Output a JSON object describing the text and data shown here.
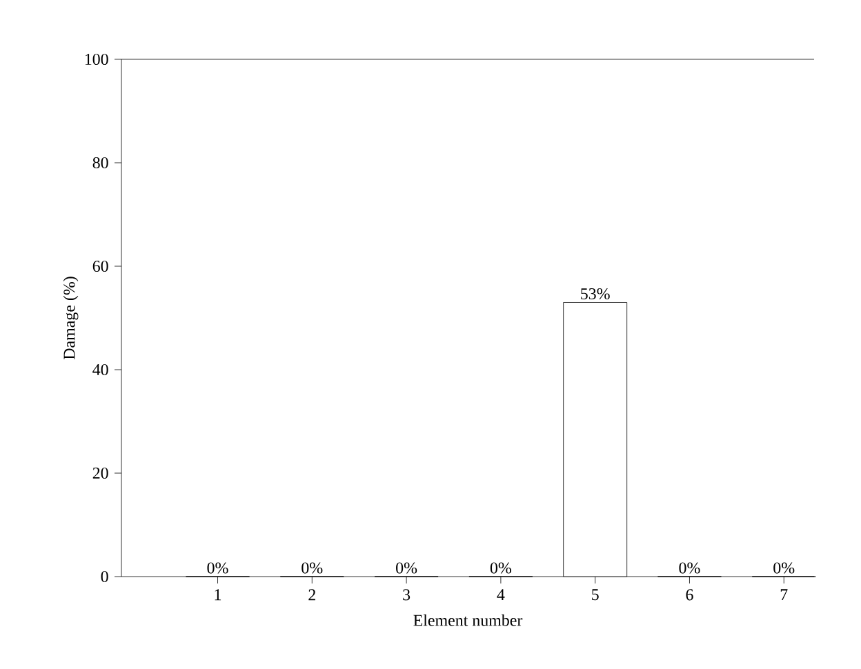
{
  "chart_data": {
    "type": "bar",
    "xlabel": "Element number",
    "ylabel": "Damage (%)",
    "categories": [
      "1",
      "2",
      "3",
      "4",
      "5",
      "6",
      "7"
    ],
    "values": [
      0,
      0,
      0,
      0,
      53,
      0,
      0
    ],
    "value_labels": [
      "0%",
      "0%",
      "0%",
      "0%",
      "53%",
      "0%",
      "0%"
    ],
    "color": "#ffffff",
    "ylim": [
      0,
      100
    ],
    "yticks": [
      0,
      20,
      40,
      60,
      80,
      100
    ],
    "grid": false
  }
}
